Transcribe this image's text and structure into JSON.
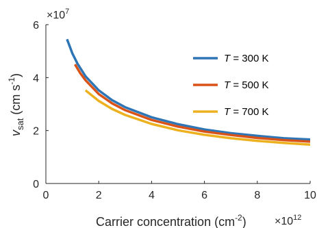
{
  "chart_data": {
    "type": "line",
    "x_multiplier": "×10",
    "x_exponent": "12",
    "y_multiplier": "×10",
    "y_exponent": "7",
    "xlabel": {
      "main": "Carrier concentration (cm",
      "sup": "-2",
      "close": ")"
    },
    "ylabel": {
      "v": "v",
      "sub": "sat",
      "unit_open": " (cm s",
      "sup": "-1",
      "unit_close": ")"
    },
    "xlim": [
      0,
      10
    ],
    "ylim": [
      0,
      6
    ],
    "x_ticks": [
      "0",
      "2",
      "4",
      "6",
      "8",
      "10"
    ],
    "y_ticks": [
      "0",
      "2",
      "4",
      "6"
    ],
    "grid": false,
    "legend_position": "top-right",
    "series": [
      {
        "name_prefix": "T",
        "name_suffix": " = 300 K",
        "color": "#2e75b6",
        "x": [
          0.8,
          1.0,
          1.2,
          1.5,
          2.0,
          2.5,
          3.0,
          4.0,
          5.0,
          6.0,
          7.0,
          8.0,
          9.0,
          10.0
        ],
        "y": [
          5.45,
          4.92,
          4.52,
          4.05,
          3.52,
          3.15,
          2.88,
          2.5,
          2.24,
          2.04,
          1.9,
          1.8,
          1.71,
          1.66
        ]
      },
      {
        "name_prefix": "T",
        "name_suffix": " = 500 K",
        "color": "#d95319",
        "x": [
          1.1,
          1.3,
          1.5,
          2.0,
          2.5,
          3.0,
          4.0,
          5.0,
          6.0,
          7.0,
          8.0,
          9.0,
          10.0
        ],
        "y": [
          4.5,
          4.17,
          3.9,
          3.38,
          3.03,
          2.77,
          2.4,
          2.15,
          1.96,
          1.83,
          1.72,
          1.64,
          1.58
        ]
      },
      {
        "name_prefix": "T",
        "name_suffix": " = 700 K",
        "color": "#edb120",
        "x": [
          1.5,
          2.0,
          2.5,
          3.0,
          4.0,
          5.0,
          6.0,
          7.0,
          8.0,
          9.0,
          10.0
        ],
        "y": [
          3.52,
          3.12,
          2.82,
          2.59,
          2.25,
          2.01,
          1.84,
          1.71,
          1.61,
          1.53,
          1.47
        ]
      }
    ]
  }
}
